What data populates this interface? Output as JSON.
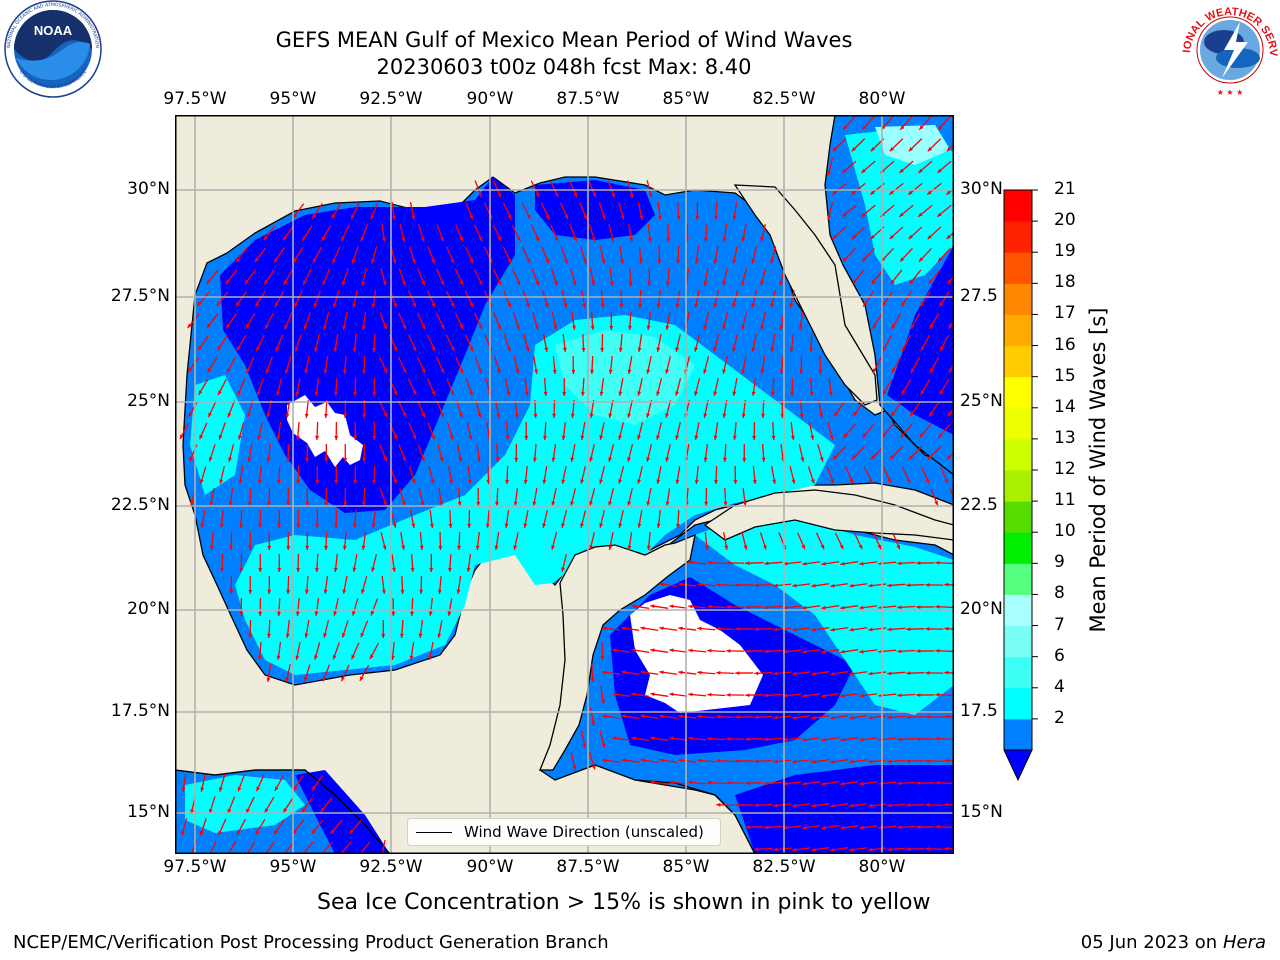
{
  "title": {
    "line1": "GEFS MEAN Gulf of Mexico Mean Period of Wind Waves",
    "line2": "20230603 t00z 048h fcst   Max: 8.40"
  },
  "logos": {
    "left": {
      "name": "NOAA",
      "ring_text": "NATIONAL OCEANIC AND ATMOSPHERIC ADMINISTRATION",
      "bottom_text": "U.S. DEPARTMENT OF COMMERCE"
    },
    "right": {
      "ring_text": "NATIONAL WEATHER SERVICE"
    }
  },
  "axes": {
    "lon_labels": [
      "97.5°W",
      "95°W",
      "92.5°W",
      "90°W",
      "87.5°W",
      "85°W",
      "82.5°W",
      "80°W"
    ],
    "lat_labels_left": [
      "30°N",
      "27.5°N",
      "25°N",
      "22.5°N",
      "20°N",
      "17.5°N",
      "15°N"
    ],
    "lat_labels_right": [
      "30°N",
      "27.5",
      "25°N",
      "22.5",
      "20°N",
      "17.5",
      "15°N"
    ]
  },
  "colorbar": {
    "label": "Mean Period of Wind Waves [s]",
    "ticks": [
      "21",
      "20",
      "19",
      "18",
      "17",
      "16",
      "15",
      "14",
      "13",
      "12",
      "11",
      "10",
      "9",
      "8",
      "7",
      "6",
      "4",
      "2"
    ],
    "colors_bottom_to_top": [
      "#0080ff",
      "#00ffff",
      "#3dfff5",
      "#7afff7",
      "#aaffff",
      "#55ff7f",
      "#00ee00",
      "#55dd00",
      "#aaee00",
      "#ccff00",
      "#eeff00",
      "#ffff00",
      "#ffcc00",
      "#ffaa00",
      "#ff8800",
      "#ff5500",
      "#ff2200",
      "#ff0000"
    ],
    "under_color": "#0000ff"
  },
  "map": {
    "land_color": "#efecdc",
    "ocean_colors": {
      "dark": "#0000ff",
      "medium": "#0080ff",
      "cyan": "#00ffff",
      "light_cyan": "#40fff5",
      "pale": "#99ffff"
    },
    "arrow_color": "#ff0000"
  },
  "legend": {
    "label": "Wind Wave Direction (unscaled)"
  },
  "subnote": "Sea Ice Concentration > 15% is shown in pink to yellow",
  "footer": {
    "left": "NCEP/EMC/Verification Post Processing Product Generation Branch",
    "right_date": "05 Jun 2023 on",
    "right_machine": "Hera"
  }
}
